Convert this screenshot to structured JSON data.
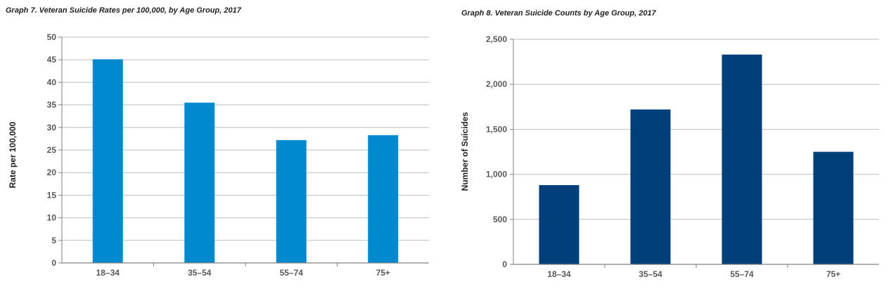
{
  "chart_data": [
    {
      "type": "bar",
      "title": "Graph 7. Veteran Suicide Rates per 100,000, by Age Group, 2017",
      "xlabel": "",
      "ylabel": "Rate per 100,000",
      "categories": [
        "18–34",
        "35–54",
        "55–74",
        "75+"
      ],
      "values": [
        45.1,
        35.5,
        27.2,
        28.3
      ],
      "ylim": [
        0,
        50
      ],
      "yticks": [
        0,
        5,
        10,
        15,
        20,
        25,
        30,
        35,
        40,
        45,
        50
      ],
      "ytick_labels": [
        "0",
        "5",
        "10",
        "15",
        "20",
        "25",
        "30",
        "35",
        "40",
        "45",
        "50"
      ],
      "grid": true,
      "legend": "none",
      "color": "#0089cf"
    },
    {
      "type": "bar",
      "title": "Graph 8. Veteran Suicide Counts by Age Group, 2017",
      "xlabel": "",
      "ylabel": "Number of Suicides",
      "categories": [
        "18–34",
        "35–54",
        "55–74",
        "75+"
      ],
      "values": [
        880,
        1720,
        2330,
        1250
      ],
      "ylim": [
        0,
        2500
      ],
      "yticks": [
        0,
        500,
        1000,
        1500,
        2000,
        2500
      ],
      "ytick_labels": [
        "0",
        "500",
        "1,000",
        "1,500",
        "2,000",
        "2,500"
      ],
      "grid": true,
      "legend": "none",
      "color": "#003f7a"
    }
  ],
  "colors": {
    "grid": "#bcbec0",
    "axis": "#808285"
  }
}
